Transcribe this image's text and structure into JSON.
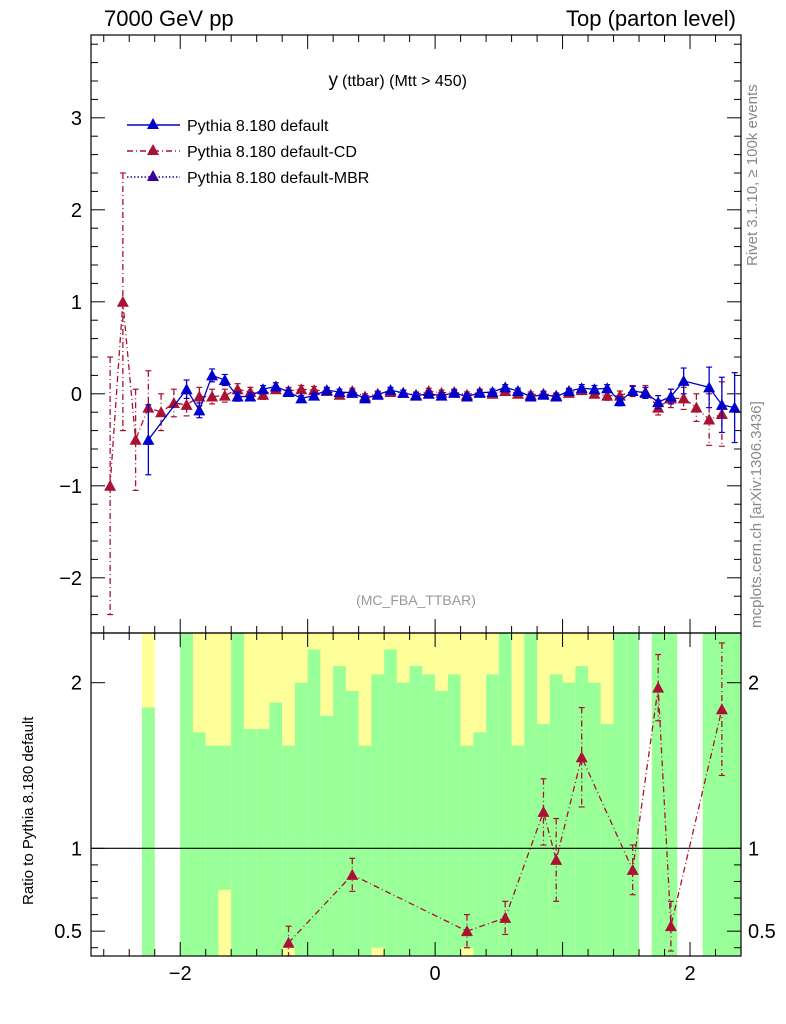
{
  "header": {
    "left": "7000 GeV pp",
    "right": "Top (parton level)"
  },
  "side_labels": {
    "rivet": "Rivet 3.1.10, ≥ 100k events",
    "mcplots": "mcplots.cern.ch [arXiv:1306.3436]"
  },
  "colors": {
    "default": "#0000cc",
    "cd": "#aa1133",
    "mbr": "#330099",
    "band_inner": "#99ff99",
    "band_outer": "#ffff99"
  },
  "chart_data": [
    {
      "type": "line",
      "title_main": "y",
      "title_rest": "(ttbar) (Mtt > 450)",
      "watermark": "(MC_FBA_TTBAR)",
      "xlabel": "",
      "ylabel": "",
      "xlim": [
        -2.7,
        2.4
      ],
      "ylim": [
        -2.6,
        3.9
      ],
      "xticks": [
        -2,
        0,
        2
      ],
      "xtick_labels": [
        "−2",
        "0",
        "2"
      ],
      "yticks": [
        -2,
        -1,
        0,
        1,
        2,
        3
      ],
      "ytick_labels": [
        "−2",
        "−1",
        "0",
        "1",
        "2",
        "3"
      ],
      "legend": [
        "Pythia 8.180 default",
        "Pythia 8.180 default-CD",
        "Pythia 8.180 default-MBR"
      ],
      "series": [
        {
          "name": "Pythia 8.180 default",
          "style": "solid",
          "x": [
            -2.25,
            -1.95,
            -1.85,
            -1.75,
            -1.65,
            -1.55,
            -1.45,
            -1.35,
            -1.25,
            -1.15,
            -1.05,
            -0.95,
            -0.85,
            -0.75,
            -0.65,
            -0.55,
            -0.45,
            -0.35,
            -0.25,
            -0.15,
            -0.05,
            0.05,
            0.15,
            0.25,
            0.35,
            0.45,
            0.55,
            0.65,
            0.75,
            0.85,
            0.95,
            1.05,
            1.15,
            1.25,
            1.35,
            1.45,
            1.55,
            1.65,
            1.75,
            1.85,
            1.95,
            2.15,
            2.25,
            2.35
          ],
          "y": [
            -0.5,
            0.05,
            -0.18,
            0.2,
            0.15,
            -0.03,
            -0.03,
            0.05,
            0.08,
            0.02,
            -0.05,
            -0.02,
            0.04,
            0.02,
            0.01,
            -0.05,
            -0.01,
            0.04,
            0.01,
            -0.02,
            0.0,
            -0.02,
            0.01,
            -0.03,
            0.01,
            0.02,
            0.07,
            0.03,
            -0.03,
            -0.01,
            -0.03,
            0.03,
            0.06,
            0.05,
            0.06,
            -0.08,
            0.03,
            0.01,
            -0.09,
            -0.03,
            0.14,
            0.07,
            -0.12,
            -0.15
          ],
          "err": [
            0.38,
            0.1,
            0.08,
            0.07,
            0.06,
            0.05,
            0.04,
            0.04,
            0.04,
            0.03,
            0.03,
            0.03,
            0.03,
            0.03,
            0.03,
            0.03,
            0.03,
            0.03,
            0.03,
            0.03,
            0.03,
            0.03,
            0.03,
            0.03,
            0.03,
            0.03,
            0.03,
            0.03,
            0.03,
            0.03,
            0.03,
            0.03,
            0.04,
            0.04,
            0.04,
            0.05,
            0.05,
            0.06,
            0.07,
            0.08,
            0.14,
            0.22,
            0.3,
            0.38
          ]
        },
        {
          "name": "Pythia 8.180 default-CD",
          "style": "dashdot",
          "x": [
            -2.55,
            -2.45,
            -2.35,
            -2.25,
            -2.15,
            -2.05,
            -1.95,
            -1.85,
            -1.75,
            -1.65,
            -1.55,
            -1.45,
            -1.35,
            -1.25,
            -1.15,
            -1.05,
            -0.95,
            -0.85,
            -0.75,
            -0.65,
            -0.55,
            -0.45,
            -0.35,
            -0.25,
            -0.15,
            -0.05,
            0.05,
            0.15,
            0.25,
            0.35,
            0.45,
            0.55,
            0.65,
            0.75,
            0.85,
            0.95,
            1.05,
            1.15,
            1.25,
            1.35,
            1.45,
            1.55,
            1.65,
            1.75,
            1.85,
            1.95,
            2.05,
            2.15,
            2.25
          ],
          "y": [
            -1.0,
            1.0,
            -0.5,
            -0.15,
            -0.2,
            -0.1,
            -0.12,
            -0.03,
            -0.03,
            -0.02,
            0.05,
            0.02,
            -0.01,
            0.05,
            0.03,
            0.05,
            0.04,
            0.03,
            -0.01,
            0.03,
            -0.03,
            0.0,
            0.02,
            0.01,
            -0.01,
            0.03,
            0.01,
            0.02,
            -0.01,
            0.02,
            0.0,
            0.03,
            0.0,
            -0.01,
            0.0,
            -0.02,
            0.01,
            0.04,
            0.0,
            -0.02,
            -0.02,
            0.03,
            0.02,
            -0.15,
            -0.05,
            -0.05,
            -0.15,
            -0.28,
            -0.22
          ],
          "err": [
            1.4,
            1.4,
            0.55,
            0.4,
            0.2,
            0.15,
            0.12,
            0.1,
            0.08,
            0.07,
            0.06,
            0.05,
            0.05,
            0.04,
            0.04,
            0.04,
            0.04,
            0.03,
            0.03,
            0.03,
            0.03,
            0.03,
            0.03,
            0.03,
            0.03,
            0.03,
            0.03,
            0.03,
            0.03,
            0.03,
            0.03,
            0.03,
            0.03,
            0.03,
            0.03,
            0.03,
            0.04,
            0.04,
            0.04,
            0.05,
            0.05,
            0.06,
            0.07,
            0.08,
            0.1,
            0.12,
            0.15,
            0.28,
            0.35
          ]
        },
        {
          "name": "Pythia 8.180 default-MBR",
          "style": "dotted",
          "x": [],
          "y": [],
          "err": []
        }
      ]
    },
    {
      "type": "line",
      "ylabel": "Ratio to Pythia 8.180 default",
      "xlim": [
        -2.7,
        2.4
      ],
      "ylim": [
        0.35,
        2.3
      ],
      "reference": 1,
      "xticks": [
        -2,
        0,
        2
      ],
      "xtick_labels": [
        "−2",
        "0",
        "2"
      ],
      "yticks": [
        0.5,
        1,
        2
      ],
      "ytick_labels": [
        "0.5",
        "1",
        "2"
      ],
      "band": {
        "edges": [
          -2.3,
          -2.2,
          -2.0,
          -1.9,
          -1.8,
          -1.7,
          -1.6,
          -1.5,
          -1.4,
          -1.3,
          -1.2,
          -1.1,
          -1.0,
          -0.9,
          -0.8,
          -0.7,
          -0.6,
          -0.5,
          -0.4,
          -0.3,
          -0.2,
          -0.1,
          0.0,
          0.1,
          0.2,
          0.3,
          0.4,
          0.5,
          0.6,
          0.7,
          0.8,
          0.9,
          1.0,
          1.1,
          1.2,
          1.3,
          1.4,
          1.5,
          1.6,
          1.7,
          1.8,
          1.9,
          2.1,
          2.2,
          2.4
        ],
        "present": [
          1,
          0,
          1,
          1,
          1,
          1,
          1,
          1,
          1,
          1,
          1,
          1,
          1,
          1,
          1,
          1,
          1,
          1,
          1,
          1,
          1,
          1,
          1,
          1,
          1,
          1,
          1,
          1,
          1,
          1,
          1,
          1,
          1,
          1,
          1,
          1,
          1,
          1,
          0,
          1,
          1,
          0,
          1,
          1
        ],
        "green_lo": [
          0.35,
          0,
          0.35,
          0.35,
          0.35,
          0.75,
          0.35,
          0.35,
          0.35,
          0.35,
          0.4,
          0.35,
          0.35,
          0.35,
          0.35,
          0.35,
          0.35,
          0.4,
          0.35,
          0.35,
          0.35,
          0.35,
          0.35,
          0.35,
          0.4,
          0.35,
          0.35,
          0.35,
          0.35,
          0.35,
          0.35,
          0.35,
          0.35,
          0.35,
          0.35,
          0.35,
          0.35,
          0.35,
          0,
          0.35,
          0.35,
          0,
          0.35,
          0.35
        ],
        "green_hi": [
          1.85,
          0,
          2.3,
          1.7,
          1.62,
          1.62,
          2.3,
          1.72,
          1.72,
          1.88,
          1.62,
          2.0,
          2.2,
          1.8,
          2.1,
          1.95,
          1.62,
          2.05,
          2.2,
          2.0,
          2.1,
          2.05,
          1.95,
          2.05,
          1.62,
          1.7,
          2.05,
          2.3,
          1.62,
          2.3,
          1.75,
          2.05,
          2.0,
          2.1,
          2.0,
          1.75,
          2.3,
          2.3,
          0,
          2.3,
          2.3,
          0,
          2.3,
          2.3
        ],
        "yellow_lo": [
          0.35,
          0,
          0.35,
          0.35,
          0.35,
          0.35,
          0.35,
          0.35,
          0.35,
          0.35,
          0.35,
          0.35,
          0.35,
          0.35,
          0.35,
          0.35,
          0.35,
          0.35,
          0.35,
          0.35,
          0.35,
          0.35,
          0.35,
          0.35,
          0.35,
          0.35,
          0.35,
          0.35,
          0.35,
          0.35,
          0.35,
          0.35,
          0.35,
          0.35,
          0.35,
          0.35,
          0.35,
          0.35,
          0,
          0.35,
          0.35,
          0,
          0.35,
          0.35
        ],
        "yellow_hi": [
          2.3,
          0,
          2.3,
          2.3,
          2.3,
          2.3,
          2.3,
          2.3,
          2.3,
          2.3,
          2.3,
          2.3,
          2.3,
          2.3,
          2.3,
          2.3,
          2.3,
          2.3,
          2.3,
          2.3,
          2.3,
          2.3,
          2.3,
          2.3,
          2.3,
          2.3,
          2.3,
          2.3,
          2.3,
          2.3,
          2.3,
          2.3,
          2.3,
          2.3,
          2.3,
          2.3,
          2.3,
          2.3,
          0,
          2.3,
          2.3,
          0,
          2.3,
          2.3
        ]
      },
      "series": [
        {
          "name": "Pythia 8.180 default-CD / default",
          "style": "dashdot",
          "x": [
            -1.15,
            -0.65,
            0.25,
            0.55,
            0.85,
            0.95,
            1.15,
            1.55,
            1.75,
            1.85,
            2.25
          ],
          "y": [
            0.43,
            0.84,
            0.5,
            0.58,
            1.22,
            0.93,
            1.55,
            0.87,
            1.97,
            0.53,
            1.84
          ],
          "err": [
            0.1,
            0.1,
            0.1,
            0.1,
            0.2,
            0.25,
            0.3,
            0.15,
            0.2,
            0.15,
            0.4
          ]
        }
      ]
    }
  ]
}
